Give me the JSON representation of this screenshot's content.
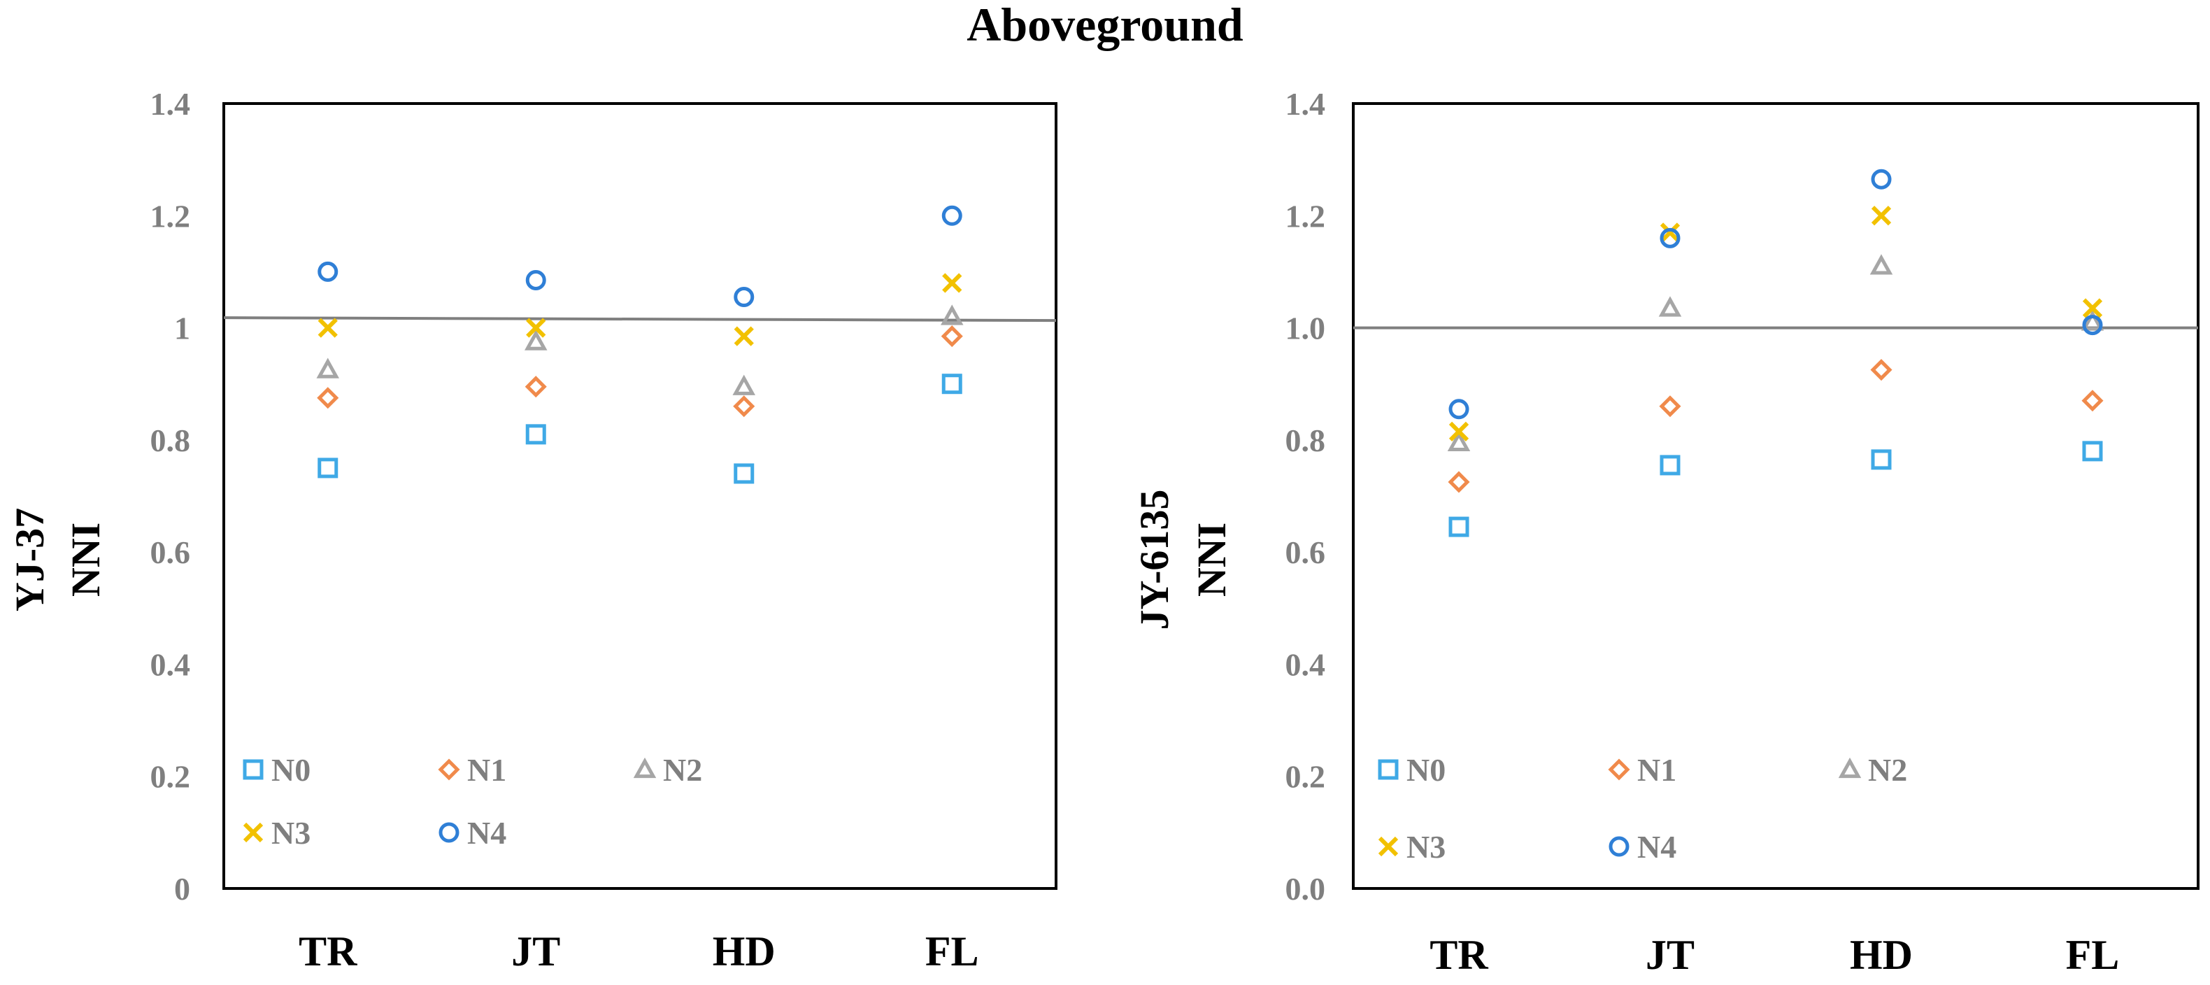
{
  "title": "Aboveground",
  "chart_data": [
    {
      "type": "scatter",
      "title": "",
      "ylabel_lines": [
        "YJ-37",
        "NNI"
      ],
      "xlabel": "",
      "categories": [
        "TR",
        "JT",
        "HD",
        "FL"
      ],
      "ylim": [
        0,
        1.4
      ],
      "yticks": [
        0,
        0.2,
        0.4,
        0.6,
        0.8,
        1,
        1.2,
        1.4
      ],
      "ytick_labels": [
        "0",
        "0.2",
        "0.4",
        "0.6",
        "0.8",
        "1",
        "1.2",
        "1.4"
      ],
      "grid": false,
      "reference_line": {
        "y0": 1.018,
        "y1": 1.013,
        "color": "#7f7f7f"
      },
      "legend_position": "bottom-left",
      "series": [
        {
          "name": "N0",
          "marker": "square",
          "color": "#3fa9e6",
          "values": [
            0.75,
            0.81,
            0.74,
            0.9
          ]
        },
        {
          "name": "N1",
          "marker": "diamond",
          "color": "#f08a4b",
          "values": [
            0.875,
            0.895,
            0.86,
            0.985
          ]
        },
        {
          "name": "N2",
          "marker": "triangle",
          "color": "#a6a6a6",
          "values": [
            0.925,
            0.975,
            0.895,
            1.02
          ]
        },
        {
          "name": "N3",
          "marker": "cross",
          "color": "#f2c100",
          "values": [
            1.0,
            1.0,
            0.985,
            1.08
          ]
        },
        {
          "name": "N4",
          "marker": "circle",
          "color": "#2f7fd6",
          "values": [
            1.1,
            1.085,
            1.055,
            1.2
          ]
        }
      ]
    },
    {
      "type": "scatter",
      "title": "",
      "ylabel_lines": [
        "JY-6135",
        "NNI"
      ],
      "xlabel": "",
      "categories": [
        "TR",
        "JT",
        "HD",
        "FL"
      ],
      "ylim": [
        0,
        1.4
      ],
      "yticks": [
        0,
        0.2,
        0.4,
        0.6,
        0.8,
        1,
        1.2,
        1.4
      ],
      "ytick_labels": [
        "0.0",
        "0.2",
        "0.4",
        "0.6",
        "0.8",
        "1.0",
        "1.2",
        "1.4"
      ],
      "grid": false,
      "reference_line": {
        "y0": 1.0,
        "y1": 1.0,
        "color": "#7f7f7f"
      },
      "legend_position": "bottom-left",
      "series": [
        {
          "name": "N0",
          "marker": "square",
          "color": "#3fa9e6",
          "values": [
            0.645,
            0.755,
            0.765,
            0.78
          ]
        },
        {
          "name": "N1",
          "marker": "diamond",
          "color": "#f08a4b",
          "values": [
            0.725,
            0.86,
            0.925,
            0.87
          ]
        },
        {
          "name": "N2",
          "marker": "triangle",
          "color": "#a6a6a6",
          "values": [
            0.795,
            1.035,
            1.11,
            1.01
          ]
        },
        {
          "name": "N3",
          "marker": "cross",
          "color": "#f2c100",
          "values": [
            0.815,
            1.17,
            1.2,
            1.035
          ]
        },
        {
          "name": "N4",
          "marker": "circle",
          "color": "#2f7fd6",
          "values": [
            0.855,
            1.16,
            1.265,
            1.005
          ]
        }
      ]
    }
  ]
}
